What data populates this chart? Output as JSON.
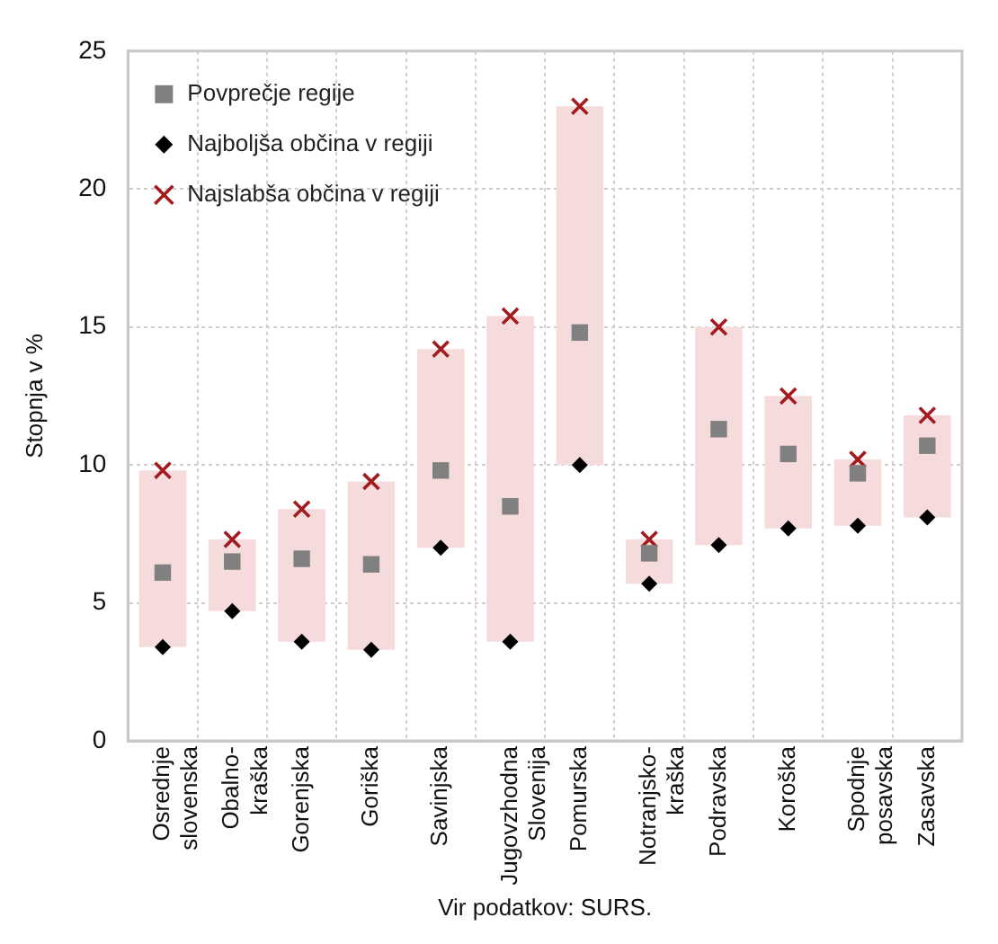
{
  "chart_data": {
    "type": "bar",
    "ylabel": "Stopnja v %",
    "categories": [
      "Osrednje slovenska",
      "Obalno-kraška",
      "Gorenjska",
      "Goriška",
      "Savinjska",
      "Jugovzhodna Slovenija",
      "Pomurska",
      "Notranjsko-kraška",
      "Podravska",
      "Koroška",
      "Spodnje posavska",
      "Zasavska"
    ],
    "series": [
      {
        "color": "#f5dbdb",
        "base": [
          3.4,
          4.7,
          3.6,
          3.3,
          7.0,
          3.6,
          10.0,
          5.7,
          7.1,
          7.7,
          7.8,
          8.1
        ],
        "values": [
          6.4,
          2.6,
          4.8,
          6.1,
          7.2,
          11.8,
          13.0,
          1.6,
          7.9,
          4.8,
          2.4,
          3.7
        ]
      },
      {
        "type": "scatter",
        "name": "Povprečje regije",
        "color": "#808080",
        "marker": "square",
        "values": [
          6.1,
          6.5,
          6.6,
          6.4,
          9.8,
          8.5,
          14.8,
          6.8,
          11.3,
          10.4,
          9.7,
          10.7
        ]
      },
      {
        "type": "scatter",
        "name": "Najboljša občina v regiji",
        "color": "#000000",
        "marker": "diamond",
        "values": [
          3.4,
          4.7,
          3.6,
          3.3,
          7.0,
          3.6,
          10.0,
          5.7,
          7.1,
          7.7,
          7.8,
          8.1
        ]
      },
      {
        "type": "scatter",
        "name": "Najslabša občina v regiji",
        "color": "#a31a1f",
        "marker": "cross",
        "values": [
          9.8,
          7.3,
          8.4,
          9.4,
          14.2,
          15.4,
          23.0,
          7.3,
          15.0,
          12.5,
          10.2,
          11.8
        ]
      }
    ],
    "ylim": [
      0,
      25
    ],
    "yticks": [
      0,
      5,
      10,
      15,
      20,
      25
    ],
    "grid": true,
    "legend": "top left",
    "annotations": [
      "Vir podatkov: SURS."
    ]
  }
}
